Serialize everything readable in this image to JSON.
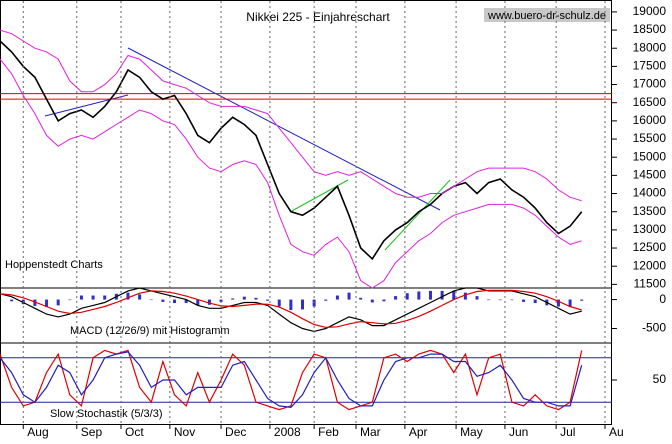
{
  "chart_data": [
    {
      "type": "line",
      "title": "Nikkei 225 - Einjahreschart",
      "source": "www.buero-dr-schulz.de",
      "annotation": "Hoppenstedt Charts",
      "x": [
        0,
        5,
        10,
        15,
        20,
        25,
        30,
        35,
        40,
        45,
        50,
        55,
        60,
        65,
        70,
        75,
        80,
        85,
        90,
        95,
        100,
        105,
        110,
        115,
        120,
        125,
        130,
        135,
        140,
        145,
        150,
        155,
        160,
        165,
        170,
        175,
        180,
        185,
        190,
        195,
        200,
        205,
        210,
        215,
        220,
        225,
        230,
        235,
        240,
        245,
        250
      ],
      "xlim": [
        0,
        260
      ],
      "ylim": [
        11400,
        19300
      ],
      "yticks": [
        11500,
        12000,
        12500,
        13000,
        13500,
        14000,
        14500,
        15000,
        15500,
        16000,
        16500,
        17000,
        17500,
        18000,
        18500,
        19000
      ],
      "hlines": [
        {
          "value": 16750,
          "color": "#e00000"
        },
        {
          "value": 16600,
          "color": "#e00000"
        }
      ],
      "series": [
        {
          "color": "#000000",
          "width": 1.6,
          "values": [
            18200,
            17900,
            17500,
            17200,
            16600,
            16000,
            16200,
            16300,
            16100,
            16400,
            16800,
            17400,
            17200,
            16800,
            16600,
            16700,
            16200,
            15600,
            15400,
            15800,
            16100,
            15900,
            15600,
            14800,
            14000,
            13500,
            13400,
            13600,
            13900,
            14200,
            13400,
            12500,
            12200,
            12700,
            13000,
            13200,
            13500,
            13700,
            14000,
            14200,
            14300,
            14000,
            14300,
            14400,
            14100,
            13900,
            13600,
            13200,
            12900,
            13100,
            13500
          ]
        },
        {
          "color": "#e020e0",
          "width": 1,
          "values": [
            18500,
            18400,
            18200,
            18000,
            17900,
            17700,
            17100,
            16800,
            16800,
            17000,
            17300,
            17800,
            17700,
            17400,
            17100,
            17000,
            16900,
            16700,
            16500,
            16400,
            16400,
            16400,
            16300,
            16200,
            15800,
            15400,
            15000,
            14600,
            14500,
            14600,
            14500,
            14600,
            14400,
            14200,
            14000,
            13900,
            13900,
            14000,
            14000,
            14200,
            14400,
            14600,
            14700,
            14700,
            14700,
            14700,
            14600,
            14400,
            14100,
            13900,
            13800
          ]
        },
        {
          "color": "#e020e0",
          "width": 1,
          "values": [
            17700,
            17300,
            16700,
            16200,
            15600,
            15300,
            15500,
            15600,
            15500,
            15700,
            15900,
            16100,
            16300,
            16200,
            16000,
            15900,
            15500,
            15000,
            14700,
            14600,
            14800,
            14900,
            14800,
            14300,
            13400,
            12600,
            12400,
            12300,
            12600,
            12800,
            12400,
            11600,
            11400,
            11600,
            12100,
            12400,
            12700,
            12900,
            13200,
            13400,
            13500,
            13600,
            13700,
            13700,
            13700,
            13600,
            13400,
            13100,
            12800,
            12600,
            12700
          ]
        }
      ]
    },
    {
      "type": "line",
      "title": "MACD (12/26/9) mit Histogramm",
      "x": [
        0,
        5,
        10,
        15,
        20,
        25,
        30,
        35,
        40,
        45,
        50,
        55,
        60,
        65,
        70,
        75,
        80,
        85,
        90,
        95,
        100,
        105,
        110,
        115,
        120,
        125,
        130,
        135,
        140,
        145,
        150,
        155,
        160,
        165,
        170,
        175,
        180,
        185,
        190,
        195,
        200,
        205,
        210,
        215,
        220,
        225,
        230,
        235,
        240,
        245,
        250
      ],
      "xlim": [
        0,
        260
      ],
      "ylim": [
        -750,
        200
      ],
      "yticks": [
        0,
        -500
      ],
      "series": [
        {
          "kind": "bar",
          "color": "#3030c8",
          "values": [
            0,
            -30,
            -80,
            -110,
            -130,
            -100,
            -10,
            70,
            70,
            70,
            100,
            120,
            90,
            0,
            -40,
            -60,
            -60,
            -100,
            -90,
            -40,
            20,
            50,
            30,
            -20,
            -120,
            -180,
            -170,
            -120,
            -20,
            70,
            120,
            30,
            -50,
            -30,
            60,
            110,
            140,
            150,
            150,
            150,
            120,
            60,
            -10,
            -10,
            -10,
            -40,
            -60,
            -100,
            -120,
            -130,
            -20
          ]
        },
        {
          "color": "#000000",
          "width": 1.2,
          "values": [
            100,
            50,
            -50,
            -150,
            -250,
            -300,
            -250,
            -150,
            -100,
            -50,
            50,
            150,
            200,
            150,
            100,
            50,
            0,
            -100,
            -150,
            -150,
            -100,
            -50,
            -50,
            -100,
            -250,
            -400,
            -500,
            -550,
            -500,
            -400,
            -300,
            -350,
            -450,
            -450,
            -350,
            -250,
            -150,
            -50,
            50,
            150,
            200,
            200,
            150,
            150,
            150,
            100,
            50,
            -50,
            -150,
            -250,
            -200
          ]
        },
        {
          "color": "#e00000",
          "width": 1.2,
          "values": [
            100,
            80,
            30,
            -40,
            -120,
            -200,
            -240,
            -220,
            -170,
            -120,
            -50,
            30,
            110,
            150,
            140,
            110,
            60,
            0,
            -60,
            -110,
            -120,
            -100,
            -80,
            -80,
            -130,
            -220,
            -330,
            -430,
            -480,
            -470,
            -420,
            -380,
            -400,
            -420,
            -410,
            -360,
            -290,
            -200,
            -100,
            0,
            80,
            140,
            160,
            160,
            160,
            140,
            110,
            50,
            -30,
            -120,
            -180
          ]
        }
      ]
    },
    {
      "type": "line",
      "title": "Slow Stochastik (5/3/3)",
      "x": [
        0,
        5,
        10,
        15,
        20,
        25,
        30,
        35,
        40,
        45,
        50,
        55,
        60,
        65,
        70,
        75,
        80,
        85,
        90,
        95,
        100,
        105,
        110,
        115,
        120,
        125,
        130,
        135,
        140,
        145,
        150,
        155,
        160,
        165,
        170,
        175,
        180,
        185,
        190,
        195,
        200,
        205,
        210,
        215,
        220,
        225,
        230,
        235,
        240,
        245,
        250
      ],
      "xlim": [
        0,
        260
      ],
      "ylim": [
        0,
        100
      ],
      "yticks": [
        50
      ],
      "xticks": [
        {
          "value": 10,
          "label": "Aug"
        },
        {
          "value": 33,
          "label": "Sep"
        },
        {
          "value": 52,
          "label": "Oct"
        },
        {
          "value": 73,
          "label": "Nov"
        },
        {
          "value": 95,
          "label": "Dec"
        },
        {
          "value": 116,
          "label": "2008"
        },
        {
          "value": 135,
          "label": "Feb"
        },
        {
          "value": 153,
          "label": "Mar"
        },
        {
          "value": 174,
          "label": "Apr"
        },
        {
          "value": 196,
          "label": "May"
        },
        {
          "value": 217,
          "label": "Jun"
        },
        {
          "value": 239,
          "label": "Jul"
        },
        {
          "value": 260,
          "label": "Au"
        }
      ],
      "grid": true,
      "hlines": [
        {
          "value": 80,
          "color": "#2020a0"
        },
        {
          "value": 20,
          "color": "#2020a0"
        }
      ],
      "series": [
        {
          "color": "#e00000",
          "width": 1.2,
          "values": [
            85,
            40,
            15,
            20,
            60,
            85,
            30,
            15,
            80,
            90,
            85,
            90,
            40,
            20,
            75,
            30,
            15,
            60,
            20,
            50,
            85,
            70,
            20,
            15,
            10,
            15,
            60,
            85,
            80,
            20,
            10,
            15,
            20,
            80,
            85,
            75,
            85,
            90,
            85,
            60,
            85,
            30,
            80,
            85,
            20,
            15,
            30,
            15,
            10,
            20,
            90
          ]
        },
        {
          "color": "#2020c0",
          "width": 1.2,
          "values": [
            80,
            60,
            30,
            20,
            40,
            70,
            60,
            30,
            50,
            80,
            85,
            88,
            70,
            40,
            50,
            50,
            30,
            40,
            40,
            40,
            70,
            75,
            50,
            25,
            15,
            13,
            30,
            60,
            80,
            50,
            25,
            15,
            15,
            50,
            75,
            80,
            80,
            85,
            85,
            75,
            75,
            55,
            60,
            70,
            50,
            25,
            20,
            20,
            15,
            15,
            70
          ]
        }
      ]
    }
  ]
}
